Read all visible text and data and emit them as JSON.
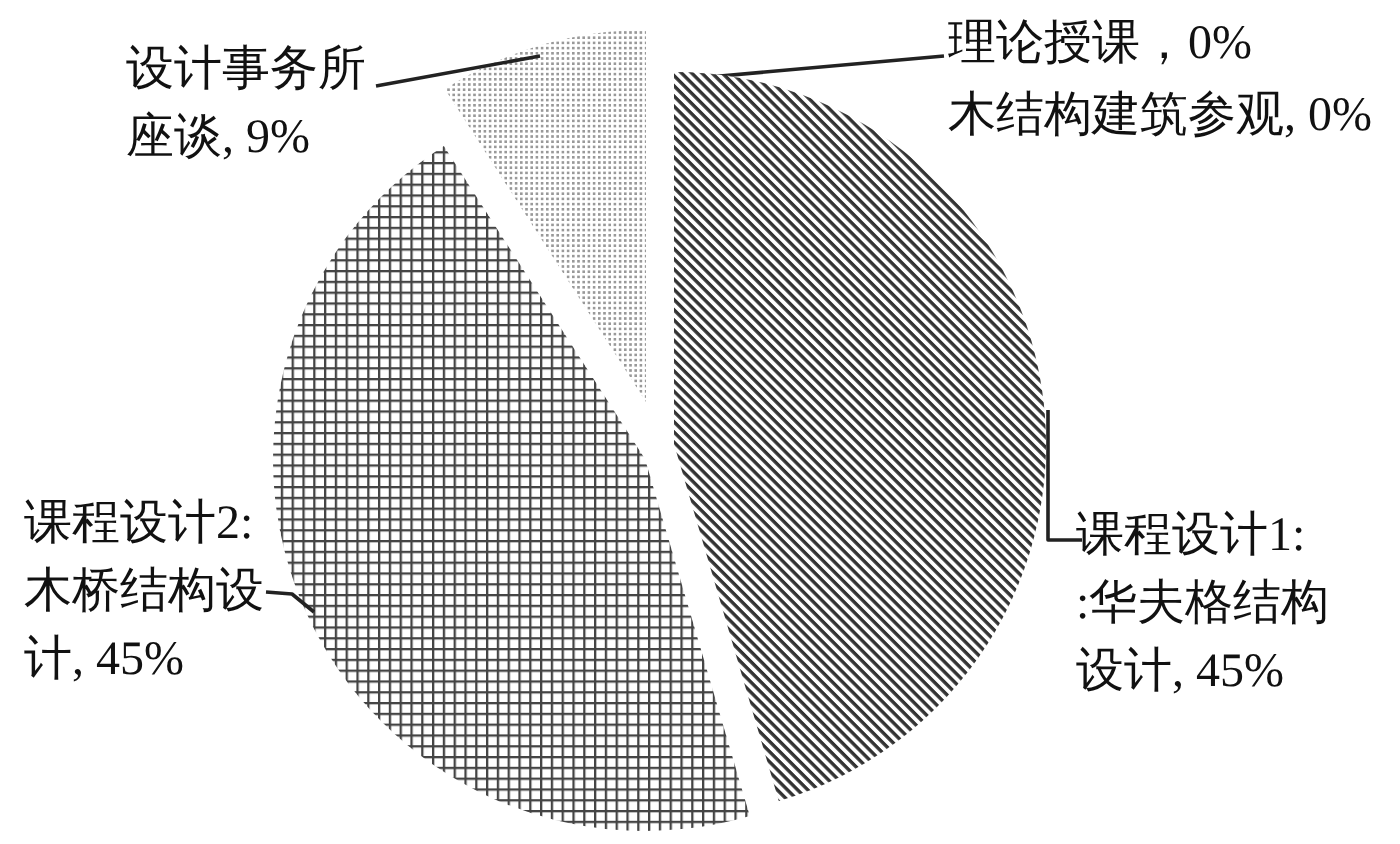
{
  "chart_data": {
    "type": "pie",
    "categories": [
      "理论授课",
      "木结构建筑参观",
      "课程设计1: :华夫格结构设计",
      "课程设计2: 木桥结构设计",
      "设计事务所座谈"
    ],
    "values": [
      0,
      0,
      45,
      45,
      9
    ],
    "value_labels": [
      "，0%",
      ", 0%",
      ", 45%",
      ", 45%",
      ", 9%"
    ],
    "colors": [
      null,
      null,
      "#333333",
      "#444444",
      "#999999"
    ]
  }
}
